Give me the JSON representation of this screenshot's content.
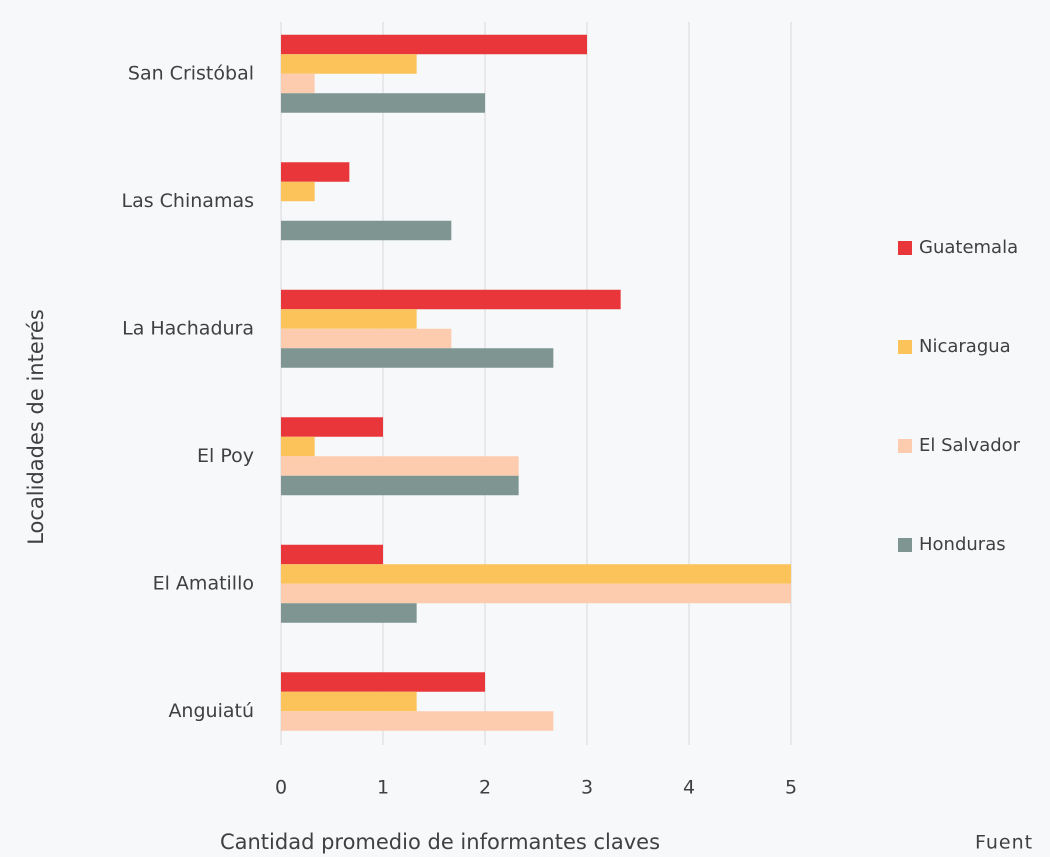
{
  "chart_data": {
    "type": "bar",
    "orientation": "horizontal",
    "categories": [
      "San Cristóbal",
      "Las Chinamas",
      "La Hachadura",
      "El Poy",
      "El Amatillo",
      "Anguiatú"
    ],
    "series": [
      {
        "name": "Guatemala",
        "color": "#e8363a",
        "values": [
          3,
          0.67,
          3.33,
          1,
          1,
          2
        ]
      },
      {
        "name": "Nicaragua",
        "color": "#fbc35a",
        "values": [
          1.33,
          0.33,
          1.33,
          0.33,
          5,
          1.33
        ]
      },
      {
        "name": "El Salvador",
        "color": "#fdcbad",
        "values": [
          0.33,
          0,
          1.67,
          2.33,
          5,
          2.67
        ]
      },
      {
        "name": "Honduras",
        "color": "#7f9591",
        "values": [
          2,
          1.67,
          2.67,
          2.33,
          1.33,
          0
        ]
      }
    ],
    "xlim": [
      0,
      5
    ],
    "xticks": [
      0,
      1,
      2,
      3,
      4,
      5
    ],
    "grid": true,
    "xlabel": "Cantidad promedio de informantes claves",
    "ylabel": "Localidades de interés",
    "legend": "right",
    "note": "Fuent"
  }
}
